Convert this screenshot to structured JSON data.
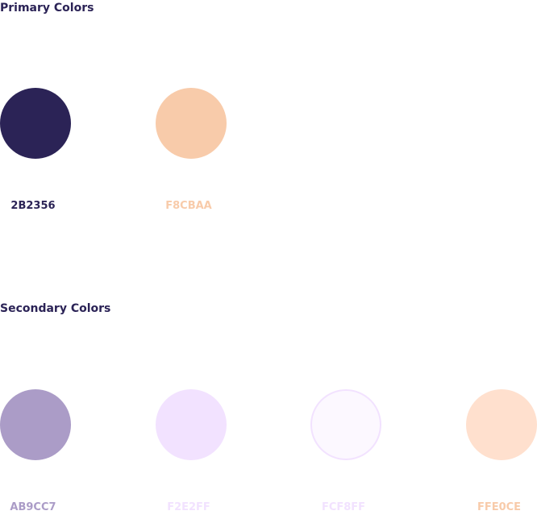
{
  "primary": {
    "title": "Primary Colors",
    "colors": [
      {
        "label": "2B2356",
        "hex": "#2B2356",
        "label_color": "#2B2356"
      },
      {
        "label": "F8CBAA",
        "hex": "#F8CBAA",
        "label_color": "#F8CBAA"
      }
    ]
  },
  "secondary": {
    "title": "Secondary Colors",
    "colors": [
      {
        "label": "AB9CC7",
        "hex": "#AB9CC7",
        "label_color": "#AB9CC7"
      },
      {
        "label": "F2E2FF",
        "hex": "#F2E2FF",
        "label_color": "#F2E2FF"
      },
      {
        "label": "FCF8FF",
        "hex": "#FCF8FF",
        "label_color": "#F2E2FF"
      },
      {
        "label": "FFE0CE",
        "hex": "#FFE0CE",
        "label_color": "#F8CBAA"
      }
    ]
  }
}
